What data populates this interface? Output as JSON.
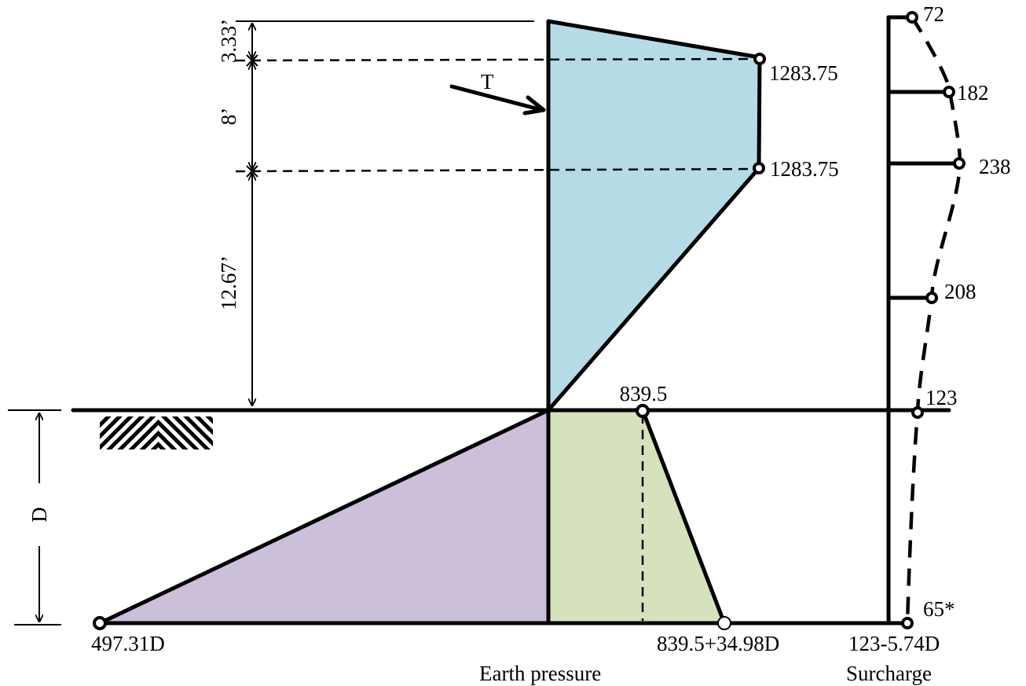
{
  "dimensions": {
    "top": "3.33’",
    "middle": "8’",
    "lower": "12.67’",
    "embedment": "D"
  },
  "force_label": "T",
  "earth_pressure": {
    "upper_value_1": "1283.75",
    "upper_value_2": "1283.75",
    "dredge_value": "839.5",
    "passive_base": "497.31D",
    "net_base": "839.5+34.98D",
    "caption": "Earth pressure"
  },
  "surcharge": {
    "values": [
      "72",
      "182",
      "238",
      "208",
      "123",
      "65*"
    ],
    "base": "123-5.74D",
    "caption": "Surcharge"
  },
  "colors": {
    "active_zone": "#b5dbe6",
    "passive_zone": "#cbbfd9",
    "net_zone": "#d5e2bd"
  }
}
